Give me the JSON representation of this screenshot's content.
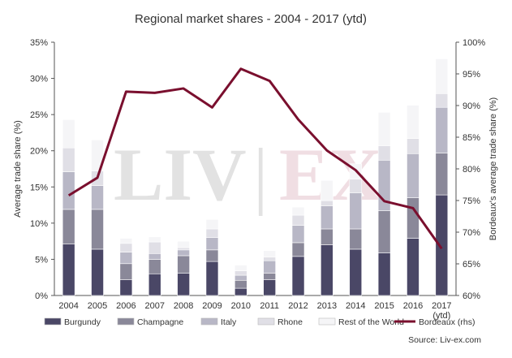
{
  "chart_data": {
    "type": "bar",
    "stacked": true,
    "title": "Regional market shares - 2004 - 2017 (ytd)",
    "ylabel": "Average trade share (%)",
    "y2label": "Bordeaux's average trade share (%)",
    "ylim": [
      0,
      35
    ],
    "y2lim": [
      60,
      100
    ],
    "yticks": [
      "0%",
      "5%",
      "10%",
      "15%",
      "20%",
      "25%",
      "30%",
      "35%"
    ],
    "y2ticks": [
      "60%",
      "65%",
      "70%",
      "75%",
      "80%",
      "85%",
      "90%",
      "95%",
      "100%"
    ],
    "categories": [
      "2004",
      "2005",
      "2006",
      "2007",
      "2008",
      "2009",
      "2010",
      "2011",
      "2012",
      "2013",
      "2014",
      "2015",
      "2016",
      "2017"
    ],
    "category_sublabels": [
      "",
      "",
      "",
      "",
      "",
      "",
      "",
      "",
      "",
      "",
      "",
      "",
      "",
      "(ytd)"
    ],
    "series": [
      {
        "name": "Burgundy",
        "color": "#4a4766",
        "values": [
          7.1,
          6.4,
          2.2,
          3.0,
          3.1,
          4.7,
          1.0,
          2.2,
          5.4,
          7.0,
          6.4,
          5.9,
          7.9,
          13.9
        ]
      },
      {
        "name": "Champagne",
        "color": "#8a8899",
        "values": [
          4.8,
          5.5,
          2.2,
          2.0,
          2.4,
          1.6,
          1.1,
          0.9,
          1.9,
          2.2,
          2.8,
          5.8,
          5.6,
          5.8
        ]
      },
      {
        "name": "Italy",
        "color": "#b8b7c6",
        "values": [
          5.2,
          3.3,
          1.6,
          0.8,
          0.8,
          1.7,
          0.7,
          1.7,
          2.4,
          3.2,
          5.0,
          7.0,
          6.1,
          6.3
        ]
      },
      {
        "name": "Rhone",
        "color": "#e0dfe6",
        "values": [
          3.3,
          2.0,
          1.2,
          1.6,
          0.3,
          1.2,
          0.6,
          0.5,
          1.4,
          0.7,
          1.9,
          2.0,
          2.1,
          1.9
        ]
      },
      {
        "name": "Rest of the World",
        "color": "#f5f5f7",
        "values": [
          3.9,
          4.3,
          0.7,
          0.7,
          0.9,
          1.3,
          0.8,
          0.9,
          1.1,
          2.8,
          2.1,
          4.6,
          4.6,
          4.8
        ]
      }
    ],
    "line_series": {
      "name": "Bordeaux (rhs)",
      "color": "#7a0f2e",
      "axis": "right",
      "values": [
        75.8,
        78.6,
        92.2,
        92.0,
        92.7,
        89.7,
        95.8,
        93.9,
        87.8,
        82.9,
        79.8,
        74.9,
        73.8,
        67.4
      ]
    },
    "legend_position": "bottom",
    "grid": false
  },
  "watermark": {
    "left": "LIV",
    "separator": "|",
    "right": "EX",
    "left_color": "#d9d9d9",
    "right_color": "#ecd4da"
  },
  "source": "Source: Liv-ex.com"
}
